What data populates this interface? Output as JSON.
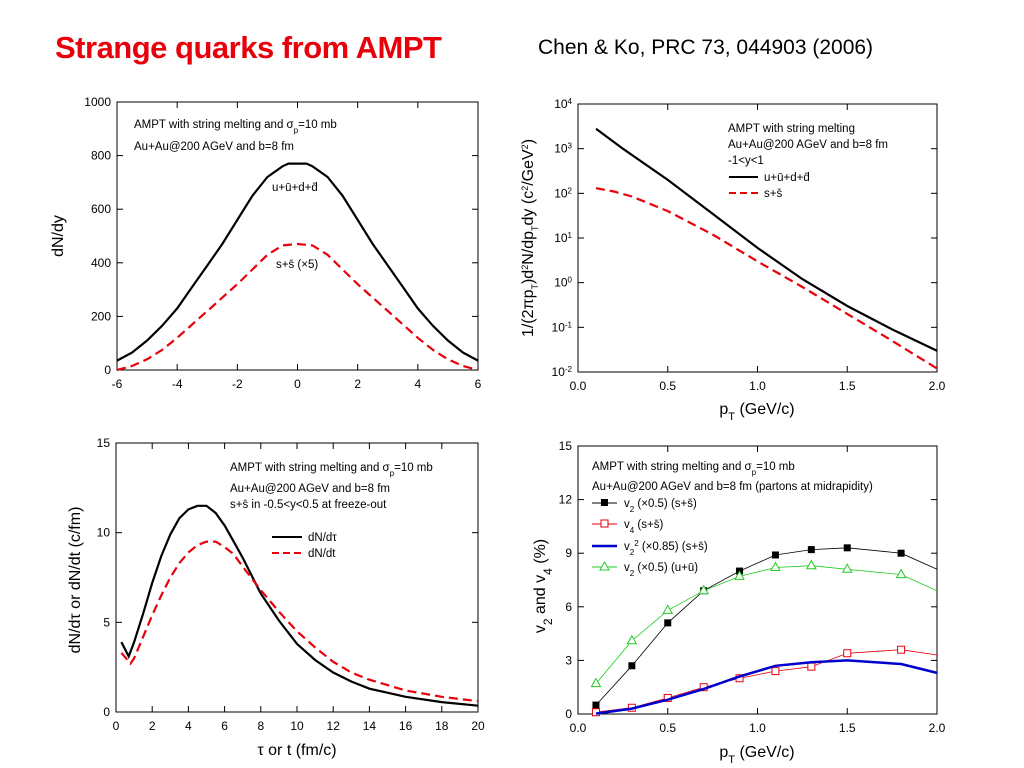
{
  "slide": {
    "title": "Strange quarks from AMPT",
    "citation": "Chen & Ko, PRC 73, 044903 (2006)"
  },
  "chart_data": [
    {
      "type": "line",
      "xlabel": "",
      "ylabel": "dN/dy",
      "xlim": [
        -6,
        6
      ],
      "ylim": [
        0,
        1000
      ],
      "xticks": [
        "-6",
        "-4",
        "-2",
        "0",
        "2",
        "4",
        "6"
      ],
      "yticks": [
        "0",
        "200",
        "400",
        "600",
        "800",
        "1000"
      ],
      "annotations": [
        "AMPT with string melting and σp=10 mb",
        "Au+Au@200 AGeV and b=8 fm"
      ],
      "series": [
        {
          "name": "u+ū+d+d̄",
          "color": "#000000",
          "dash": "solid",
          "x": [
            -6,
            -5.5,
            -5,
            -4.5,
            -4,
            -3.5,
            -3,
            -2.5,
            -2,
            -1.5,
            -1,
            -0.5,
            -0.3,
            0,
            0.3,
            0.5,
            1,
            1.5,
            2,
            2.5,
            3,
            3.5,
            4,
            4.5,
            5,
            5.5,
            6
          ],
          "y": [
            35,
            65,
            110,
            165,
            230,
            310,
            390,
            470,
            560,
            650,
            720,
            760,
            770,
            770,
            770,
            760,
            720,
            650,
            560,
            470,
            390,
            310,
            230,
            165,
            110,
            65,
            35
          ]
        },
        {
          "name": "s+s̄ (×5)",
          "color": "#e8000b",
          "dash": "dashed",
          "x": [
            -6,
            -5.5,
            -5,
            -4.5,
            -4,
            -3.5,
            -3,
            -2.5,
            -2,
            -1.5,
            -1,
            -0.5,
            0,
            0.5,
            1,
            1.5,
            2,
            2.5,
            3,
            3.5,
            4,
            4.5,
            5,
            5.5,
            6
          ],
          "y": [
            0,
            15,
            40,
            75,
            120,
            170,
            220,
            270,
            320,
            375,
            430,
            465,
            470,
            465,
            430,
            375,
            320,
            270,
            220,
            170,
            120,
            75,
            40,
            15,
            0
          ]
        }
      ]
    },
    {
      "type": "line",
      "xlabel": "pT (GeV/c)",
      "ylabel": "1/(2πpT)d2N/dpTdy (c2/GeV2)",
      "xlim": [
        0,
        2
      ],
      "ylim": [
        0.01,
        10000
      ],
      "log_y": true,
      "xticks": [
        "0.0",
        "0.5",
        "1.0",
        "1.5",
        "2.0"
      ],
      "yticks": [
        "10-2",
        "10-1",
        "100",
        "101",
        "102",
        "103",
        "104"
      ],
      "annotations": [
        "AMPT with string melting",
        "Au+Au@200 AGeV and b=8 fm",
        "-1<y<1"
      ],
      "legend": "top-right",
      "series": [
        {
          "name": "u+ū+d+d̄",
          "color": "#000000",
          "dash": "solid",
          "x": [
            0.1,
            0.25,
            0.5,
            0.75,
            1.0,
            1.25,
            1.5,
            1.75,
            2.0
          ],
          "y": [
            2800,
            1000,
            200,
            35,
            6,
            1.2,
            0.3,
            0.09,
            0.03
          ]
        },
        {
          "name": "s+s̄",
          "color": "#e8000b",
          "dash": "dashed",
          "x": [
            0.1,
            0.2,
            0.3,
            0.5,
            0.75,
            1.0,
            1.25,
            1.5,
            1.75,
            2.0
          ],
          "y": [
            130,
            110,
            85,
            40,
            12,
            3,
            0.8,
            0.2,
            0.05,
            0.012
          ]
        }
      ]
    },
    {
      "type": "line",
      "xlabel": "τ or t (fm/c)",
      "ylabel": "dN/dτ or dN/dt (c/fm)",
      "xlim": [
        0,
        20
      ],
      "ylim": [
        0,
        15
      ],
      "xticks": [
        "0",
        "2",
        "4",
        "6",
        "8",
        "10",
        "12",
        "14",
        "16",
        "18",
        "20"
      ],
      "yticks": [
        "0",
        "5",
        "10",
        "15"
      ],
      "annotations": [
        "AMPT with string melting and σp=10 mb",
        "Au+Au@200 AGeV and b=8 fm",
        "s+s̄ in -0.5<y<0.5 at freeze-out"
      ],
      "legend": "right",
      "series": [
        {
          "name": "dN/dτ",
          "color": "#000000",
          "dash": "solid",
          "x": [
            0.3,
            0.7,
            1,
            1.5,
            2,
            2.5,
            3,
            3.5,
            4,
            4.5,
            5,
            5.5,
            6,
            6.5,
            7,
            8,
            9,
            10,
            11,
            12,
            13,
            14,
            16,
            18,
            20
          ],
          "y": [
            3.9,
            3.1,
            3.9,
            5.5,
            7.2,
            8.7,
            9.9,
            10.8,
            11.3,
            11.5,
            11.5,
            11.1,
            10.4,
            9.5,
            8.6,
            6.6,
            5.1,
            3.8,
            2.9,
            2.2,
            1.7,
            1.3,
            0.85,
            0.55,
            0.35
          ]
        },
        {
          "name": "dN/dt",
          "color": "#e8000b",
          "dash": "dashed",
          "x": [
            0.3,
            0.8,
            1,
            1.5,
            2,
            2.5,
            3,
            3.5,
            4,
            4.5,
            5,
            5.5,
            6,
            6.5,
            7,
            8,
            9,
            10,
            11,
            12,
            13,
            14,
            16,
            18,
            20
          ],
          "y": [
            3.3,
            2.7,
            3.0,
            4.2,
            5.4,
            6.5,
            7.5,
            8.3,
            8.9,
            9.3,
            9.5,
            9.5,
            9.2,
            8.8,
            8.1,
            6.8,
            5.6,
            4.5,
            3.6,
            2.8,
            2.2,
            1.8,
            1.2,
            0.85,
            0.6
          ]
        }
      ]
    },
    {
      "type": "line",
      "xlabel": "pT (GeV/c)",
      "ylabel": "v2 and v4 (%)",
      "xlim": [
        0,
        2
      ],
      "ylim": [
        0,
        15
      ],
      "xticks": [
        "0.0",
        "0.5",
        "1.0",
        "1.5",
        "2.0"
      ],
      "yticks": [
        "0",
        "3",
        "6",
        "9",
        "12",
        "15"
      ],
      "annotations": [
        "AMPT with string melting and σp=10 mb",
        "Au+Au@200 AGeV and b=8 fm (partons at midrapidity)"
      ],
      "legend": "top-left",
      "series": [
        {
          "name": "v2 (×0.5) (s+s̄)",
          "color": "#000000",
          "marker": "filled-square",
          "x": [
            0.1,
            0.3,
            0.5,
            0.7,
            0.9,
            1.1,
            1.3,
            1.5,
            1.8,
            2.0
          ],
          "y": [
            0.5,
            2.7,
            5.1,
            6.9,
            8.0,
            8.9,
            9.2,
            9.3,
            9.0,
            8.1
          ]
        },
        {
          "name": "v4 (s+s̄)",
          "color": "#e8000b",
          "marker": "open-square",
          "x": [
            0.1,
            0.3,
            0.5,
            0.7,
            0.9,
            1.1,
            1.3,
            1.5,
            1.8,
            2.0
          ],
          "y": [
            0.1,
            0.35,
            0.9,
            1.5,
            2.0,
            2.4,
            2.65,
            3.4,
            3.6,
            3.3
          ]
        },
        {
          "name": "v2² (×0.85) (s+s̄)",
          "color": "#0000cc",
          "marker": "none",
          "x": [
            0.1,
            0.3,
            0.5,
            0.7,
            0.9,
            1.1,
            1.3,
            1.5,
            1.8,
            2.0
          ],
          "y": [
            0.02,
            0.3,
            0.8,
            1.4,
            2.1,
            2.7,
            2.9,
            3.0,
            2.8,
            2.3
          ]
        },
        {
          "name": "v2 (×0.5) (u+ū)",
          "color": "#22cc22",
          "marker": "open-triangle",
          "x": [
            0.1,
            0.3,
            0.5,
            0.7,
            0.9,
            1.1,
            1.3,
            1.5,
            1.8,
            2.0
          ],
          "y": [
            1.7,
            4.1,
            5.8,
            6.9,
            7.7,
            8.2,
            8.3,
            8.1,
            7.8,
            6.9
          ]
        }
      ]
    }
  ]
}
